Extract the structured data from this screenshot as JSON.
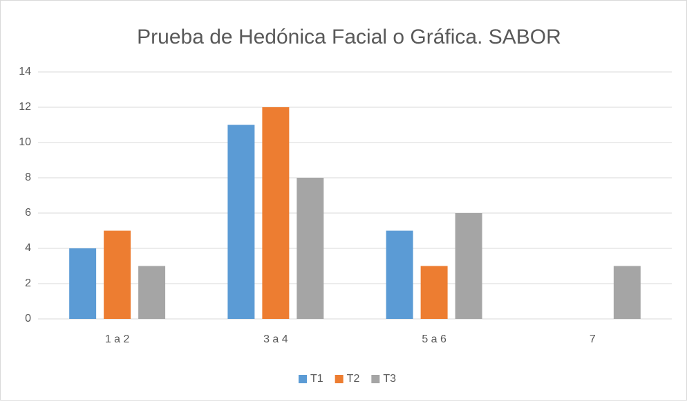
{
  "chart_data": {
    "type": "bar",
    "title": "Prueba de Hedónica Facial o Gráfica. SABOR",
    "categories": [
      "1 a 2",
      "3 a 4",
      "5 a 6",
      "7"
    ],
    "series": [
      {
        "name": "T1",
        "color": "#5b9bd5",
        "values": [
          4,
          11,
          5,
          0
        ]
      },
      {
        "name": "T2",
        "color": "#ed7d31",
        "values": [
          5,
          12,
          3,
          0
        ]
      },
      {
        "name": "T3",
        "color": "#a5a5a5",
        "values": [
          3,
          8,
          6,
          3
        ]
      }
    ],
    "ylim": [
      0,
      14
    ],
    "yticks": [
      0,
      2,
      4,
      6,
      8,
      10,
      12,
      14
    ],
    "grid": true,
    "legend": "bottom"
  }
}
